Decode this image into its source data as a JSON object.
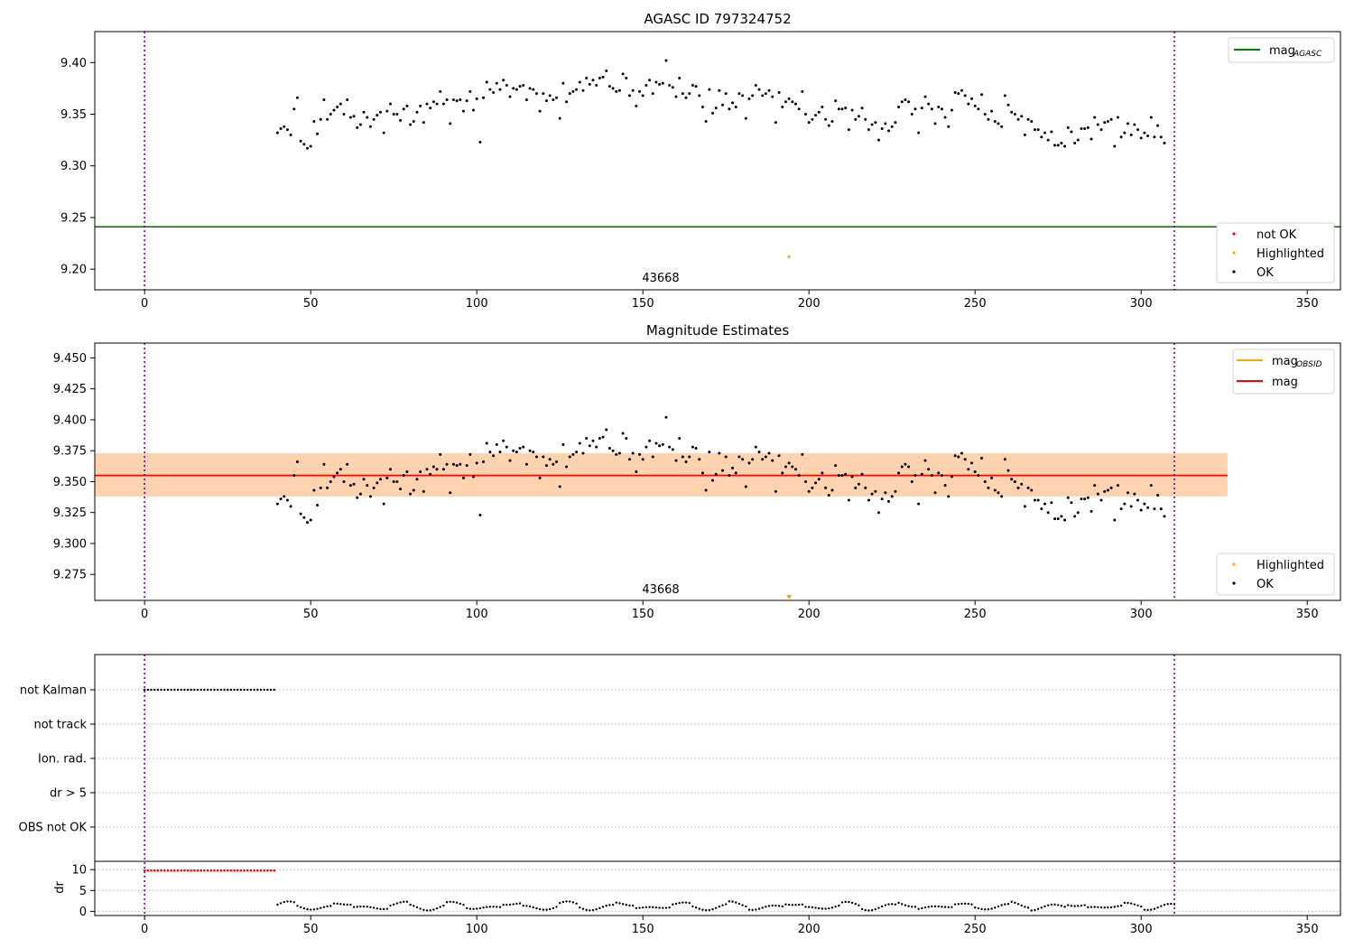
{
  "chart_data": [
    {
      "type": "scatter",
      "title": "AGASC ID 797324752",
      "xlim": [
        -15,
        360
      ],
      "ylim": [
        9.18,
        9.43
      ],
      "xticks": [
        "0",
        "50",
        "100",
        "150",
        "200",
        "250",
        "300",
        "350"
      ],
      "yticks": [
        "9.20",
        "9.25",
        "9.30",
        "9.35",
        "9.40"
      ],
      "vlines": [
        0,
        310
      ],
      "mag_agasc": 9.241,
      "obsid_label": "43668",
      "legend_lines": [
        {
          "label": "mag",
          "sub": "AGASC",
          "color": "#008000"
        }
      ],
      "legend_points": [
        {
          "label": "not OK",
          "color": "#ff0000"
        },
        {
          "label": "Highlighted",
          "color": "#ffa500"
        },
        {
          "label": "OK",
          "color": "#000000"
        }
      ],
      "highlighted": [
        {
          "x": 194,
          "y": 9.212
        }
      ],
      "series": [
        {
          "name": "OK",
          "x_start": 40,
          "x_step": 1,
          "y": [
            9.332,
            9.336,
            9.338,
            9.335,
            9.33,
            9.355,
            9.366,
            9.324,
            9.321,
            9.317,
            9.319,
            9.343,
            9.331,
            9.345,
            9.364,
            9.345,
            9.35,
            9.354,
            9.357,
            9.36,
            9.35,
            9.364,
            9.347,
            9.348,
            9.337,
            9.34,
            9.352,
            9.347,
            9.338,
            9.345,
            9.349,
            9.352,
            9.332,
            9.353,
            9.36,
            9.35,
            9.35,
            9.344,
            9.355,
            9.358,
            9.34,
            9.343,
            9.352,
            9.358,
            9.342,
            9.36,
            9.356,
            9.362,
            9.36,
            9.372,
            9.36,
            9.364,
            9.341,
            9.364,
            9.363,
            9.364,
            9.353,
            9.363,
            9.372,
            9.354,
            9.365,
            9.323,
            9.366,
            9.381,
            9.374,
            9.371,
            9.38,
            9.374,
            9.383,
            9.378,
            9.367,
            9.375,
            9.374,
            9.377,
            9.378,
            9.364,
            9.375,
            9.374,
            9.37,
            9.353,
            9.37,
            9.363,
            9.368,
            9.364,
            9.366,
            9.346,
            9.38,
            9.362,
            9.37,
            9.372,
            9.374,
            9.381,
            9.373,
            9.385,
            9.379,
            9.383,
            9.378,
            9.385,
            9.386,
            9.392,
            9.377,
            9.375,
            9.372,
            9.373,
            9.389,
            9.385,
            9.368,
            9.373,
            9.358,
            9.372,
            9.368,
            9.378,
            9.383,
            9.37,
            9.381,
            9.379,
            9.38,
            9.402,
            9.378,
            9.376,
            9.367,
            9.385,
            9.37,
            9.366,
            9.37,
            9.378,
            9.377,
            9.368,
            9.357,
            9.343,
            9.374,
            9.351,
            9.356,
            9.373,
            9.359,
            9.37,
            9.355,
            9.361,
            9.357,
            9.37,
            9.368,
            9.346,
            9.365,
            9.368,
            9.378,
            9.374,
            9.368,
            9.37,
            9.373,
            9.367,
            9.342,
            9.371,
            9.357,
            9.362,
            9.365,
            9.362,
            9.36,
            9.355,
            9.372,
            9.35,
            9.342,
            9.345,
            9.349,
            9.352,
            9.357,
            9.345,
            9.339,
            9.343,
            9.363,
            9.355,
            9.355,
            9.356,
            9.335,
            9.354,
            9.345,
            9.348,
            9.356,
            9.345,
            9.335,
            9.34,
            9.342,
            9.325,
            9.336,
            9.341,
            9.334,
            9.338,
            9.342,
            9.357,
            9.362,
            9.364,
            9.362,
            9.35,
            9.355,
            9.332,
            9.356,
            9.367,
            9.36,
            9.355,
            9.341,
            9.357,
            9.355,
            9.347,
            9.338,
            9.354,
            9.371,
            9.37,
            9.373,
            9.368,
            9.36,
            9.365,
            9.358,
            9.355,
            9.369,
            9.35,
            9.345,
            9.353,
            9.343,
            9.341,
            9.338,
            9.368,
            9.359,
            9.352,
            9.35,
            9.345,
            9.348,
            9.33,
            9.345,
            9.343,
            9.335,
            9.335,
            9.328,
            9.332,
            9.325,
            9.333,
            9.32,
            9.32,
            9.322,
            9.319,
            9.337,
            9.333,
            9.322,
            9.325,
            9.336,
            9.336,
            9.337,
            9.326,
            9.347,
            9.34,
            9.335,
            9.342,
            9.343,
            9.345,
            9.319,
            9.347,
            9.328,
            9.332,
            9.341,
            9.33,
            9.34,
            9.335,
            9.327,
            9.332,
            9.329,
            9.347,
            9.328,
            9.339,
            9.328,
            9.322
          ]
        }
      ]
    },
    {
      "type": "scatter",
      "title": "Magnitude Estimates",
      "xlim": [
        -15,
        360
      ],
      "ylim": [
        9.254,
        9.462
      ],
      "xticks": [
        "0",
        "50",
        "100",
        "150",
        "200",
        "250",
        "300",
        "350"
      ],
      "yticks": [
        "9.275",
        "9.300",
        "9.325",
        "9.350",
        "9.375",
        "9.400",
        "9.425",
        "9.450"
      ],
      "vlines": [
        0,
        310
      ],
      "obsid_label": "43668",
      "mag_obsid": {
        "value": 9.355,
        "low": 9.338,
        "high": 9.373,
        "x_range": [
          0,
          310
        ]
      },
      "mag": {
        "value": 9.355,
        "low": 9.338,
        "high": 9.373,
        "x_range": [
          -15,
          326
        ]
      },
      "legend_lines": [
        {
          "label": "mag",
          "sub": "OBSID",
          "color": "#ffa500"
        },
        {
          "label": "mag",
          "sub": "",
          "color": "#ff0000"
        }
      ],
      "legend_points": [
        {
          "label": "Highlighted",
          "color": "#ffa500"
        },
        {
          "label": "OK",
          "color": "#000000"
        }
      ],
      "highlighted_marker": {
        "x": 194,
        "label": "below axis"
      },
      "series_ref": "same as panel 1 OK series"
    },
    {
      "type": "scatter",
      "title": "",
      "xlim": [
        -15,
        360
      ],
      "xticks": [
        "0",
        "50",
        "100",
        "150",
        "200",
        "250",
        "300",
        "350"
      ],
      "vlines": [
        0,
        310
      ],
      "flag_rows": [
        "not Kalman",
        "not track",
        "Ion. rad.",
        "dr > 5",
        "OBS not OK"
      ],
      "flags": [
        {
          "row": "not Kalman",
          "x_range": [
            0,
            39
          ]
        }
      ],
      "dr_panel": {
        "ylabel": "dr",
        "yticks": [
          "0",
          "5",
          "10"
        ],
        "ylim": [
          -1,
          12
        ],
        "not_ok_x_range": [
          0,
          39
        ],
        "not_ok_value": 9.8,
        "ok_x_range": [
          40,
          310
        ]
      }
    }
  ]
}
